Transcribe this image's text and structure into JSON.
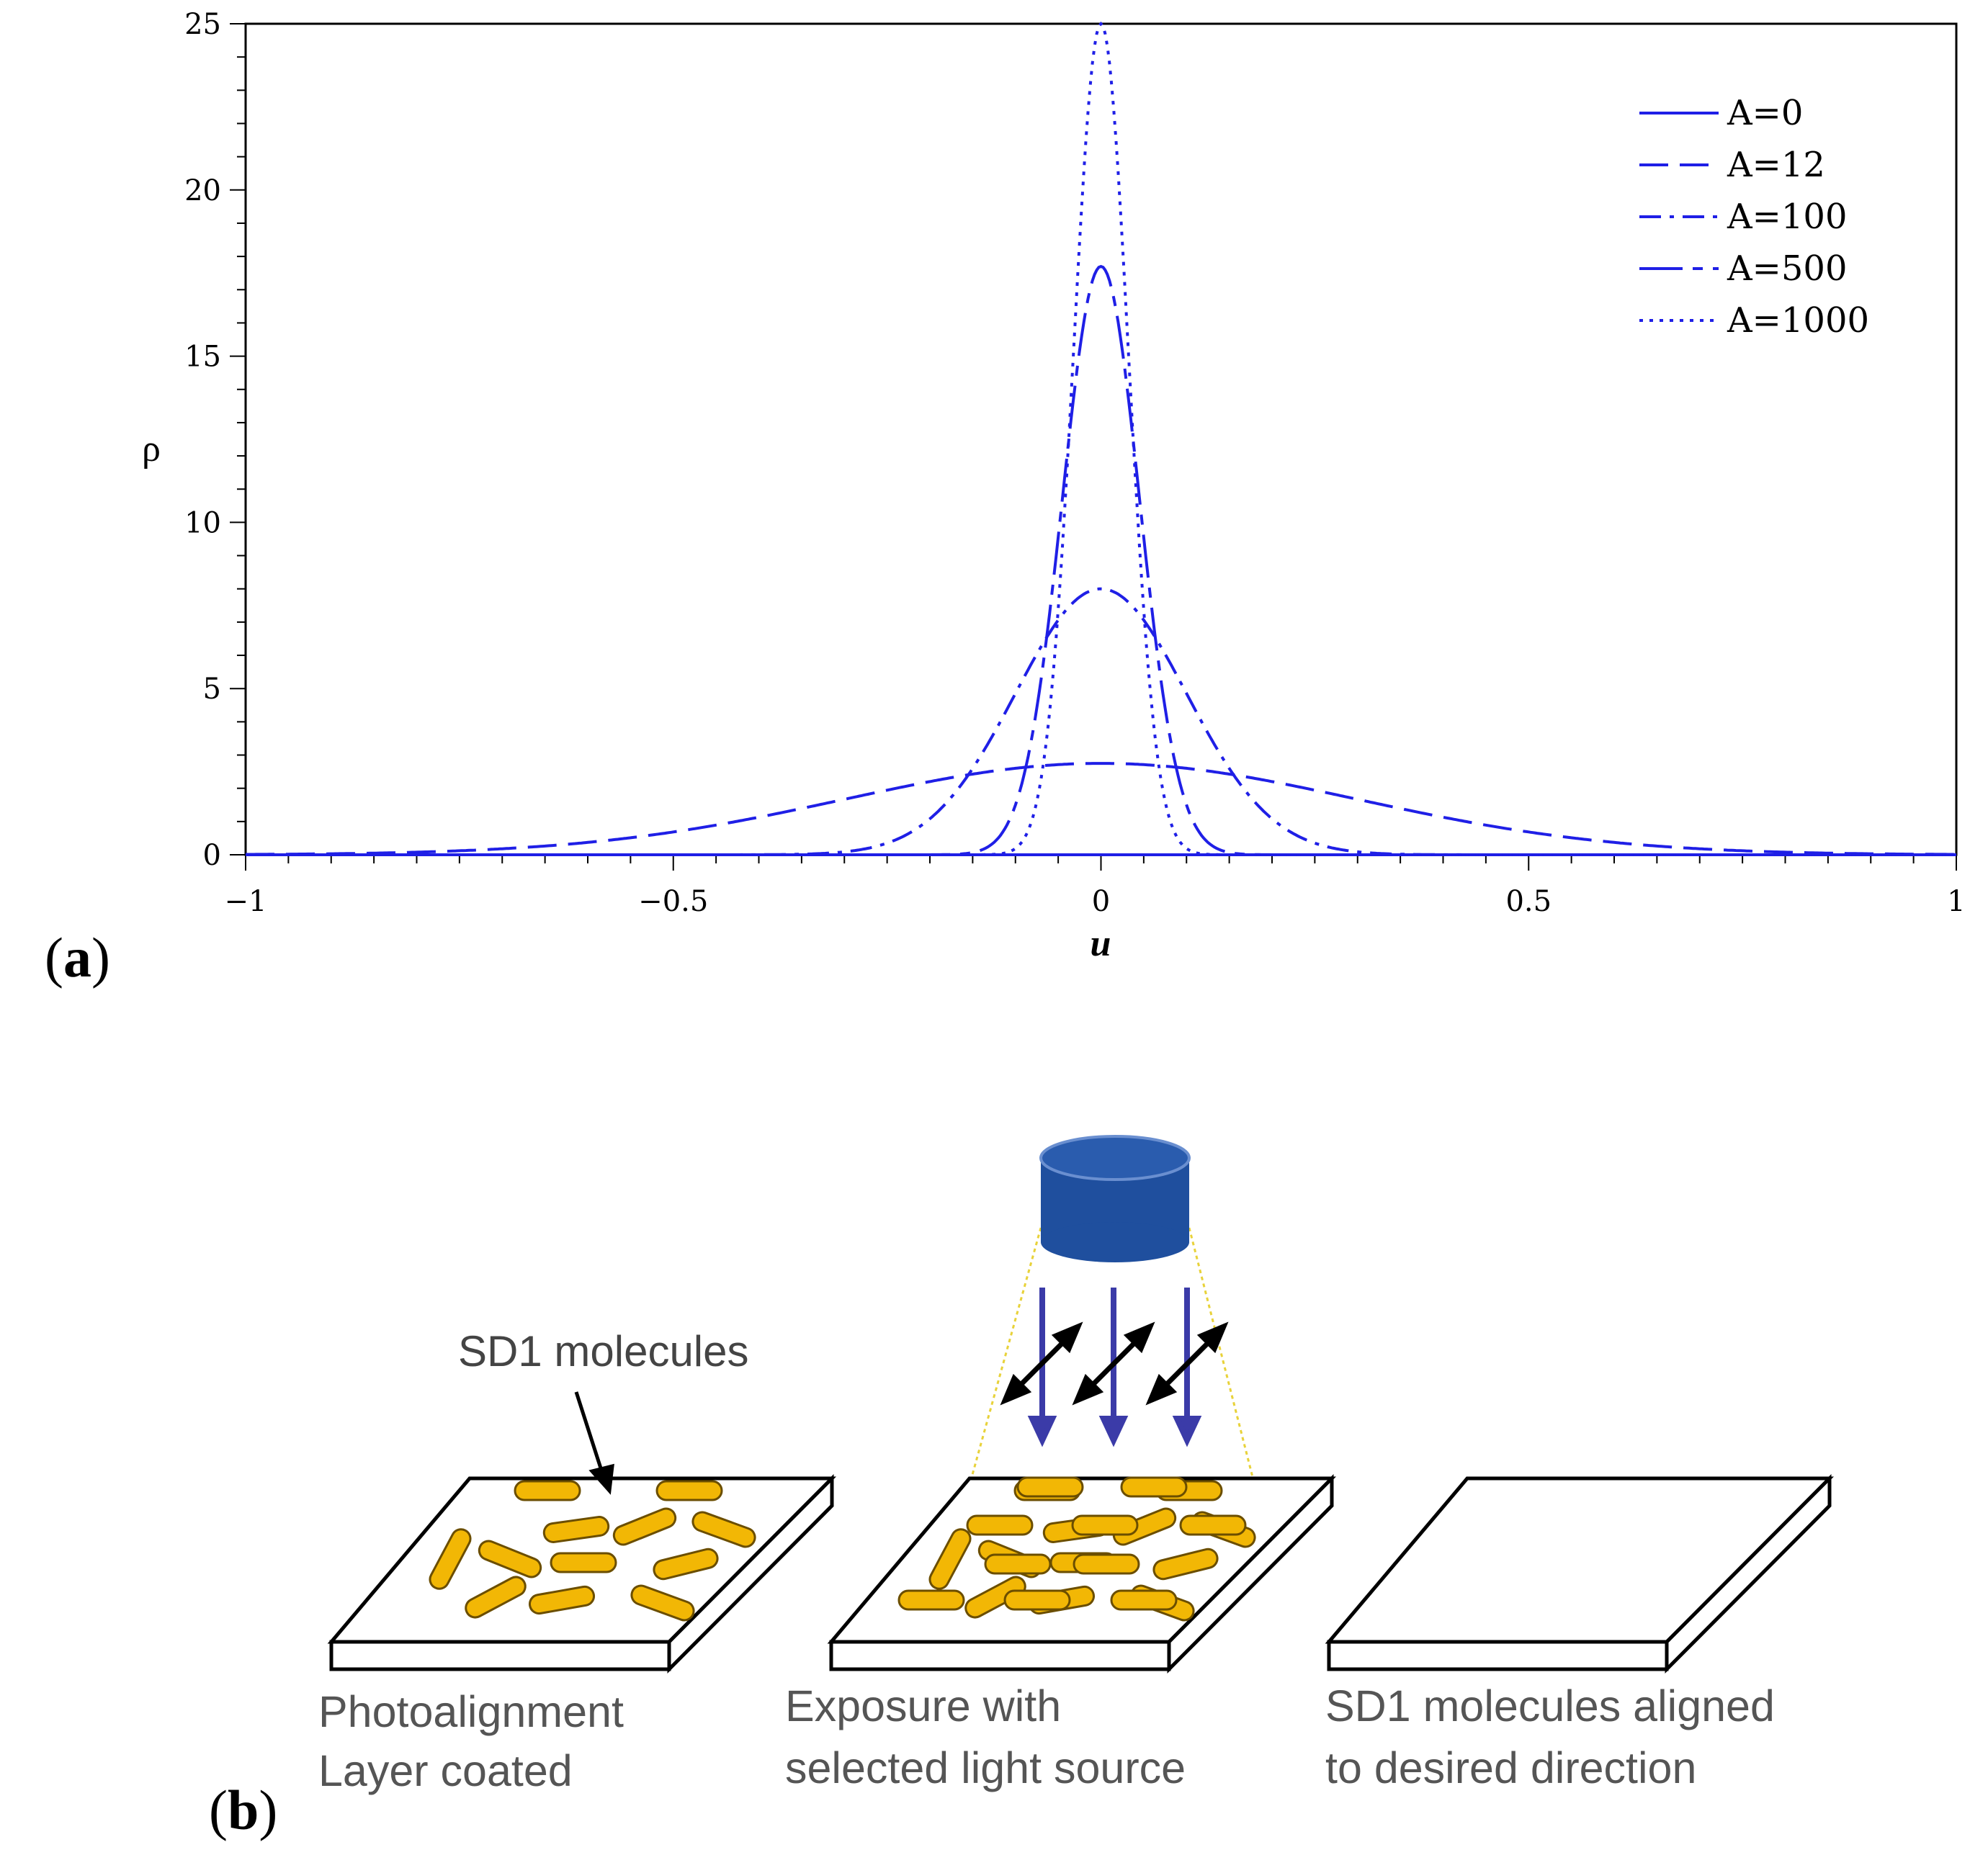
{
  "panel_a": {
    "label_open": "(",
    "label_letter": "a",
    "label_close": ")"
  },
  "chart_data": {
    "type": "line",
    "title": "",
    "xlabel": "u",
    "ylabel": "ρ",
    "xlim": [
      -1,
      1
    ],
    "ylim": [
      0,
      25
    ],
    "xticks": [
      -1,
      -0.5,
      0,
      0.5,
      1
    ],
    "xtick_labels": [
      "−1",
      "−0.5",
      "0",
      "0.5",
      "1"
    ],
    "yticks": [
      0,
      5,
      10,
      15,
      20,
      25
    ],
    "ytick_labels": [
      "0",
      "5",
      "10",
      "15",
      "20",
      "25"
    ],
    "legend_position": "top-right",
    "color": "#1f1fe6",
    "grid": false,
    "series": [
      {
        "name": "A=0",
        "style": "solid",
        "peak": 0,
        "sigma": 0.1
      },
      {
        "name": "A=12",
        "style": "dashed",
        "peak": 2.75,
        "sigma": 0.3
      },
      {
        "name": "A=100",
        "style": "dashdot",
        "peak": 8.0,
        "sigma": 0.1
      },
      {
        "name": "A=500",
        "style": "longdash",
        "peak": 17.7,
        "sigma": 0.045
      },
      {
        "name": "A=1000",
        "style": "dotted",
        "peak": 25.0,
        "sigma": 0.032
      }
    ]
  },
  "panel_b": {
    "label_open": "(",
    "label_letter": "b",
    "label_close": ")",
    "molecules_label": "SD1 molecules",
    "captions": {
      "first_line1": "Photoalignment",
      "first_line2": "Layer coated",
      "second_line1": "Exposure with",
      "second_line2": "selected light source",
      "third_line1": "SD1 molecules aligned",
      "third_line2": "to desired direction"
    },
    "colors": {
      "molecule": "#f2b705",
      "molecule_outline": "#6b4e00",
      "lamp": "#1f4f9e",
      "beam": "#f0e060",
      "arrow": "#3b3ba8"
    }
  }
}
